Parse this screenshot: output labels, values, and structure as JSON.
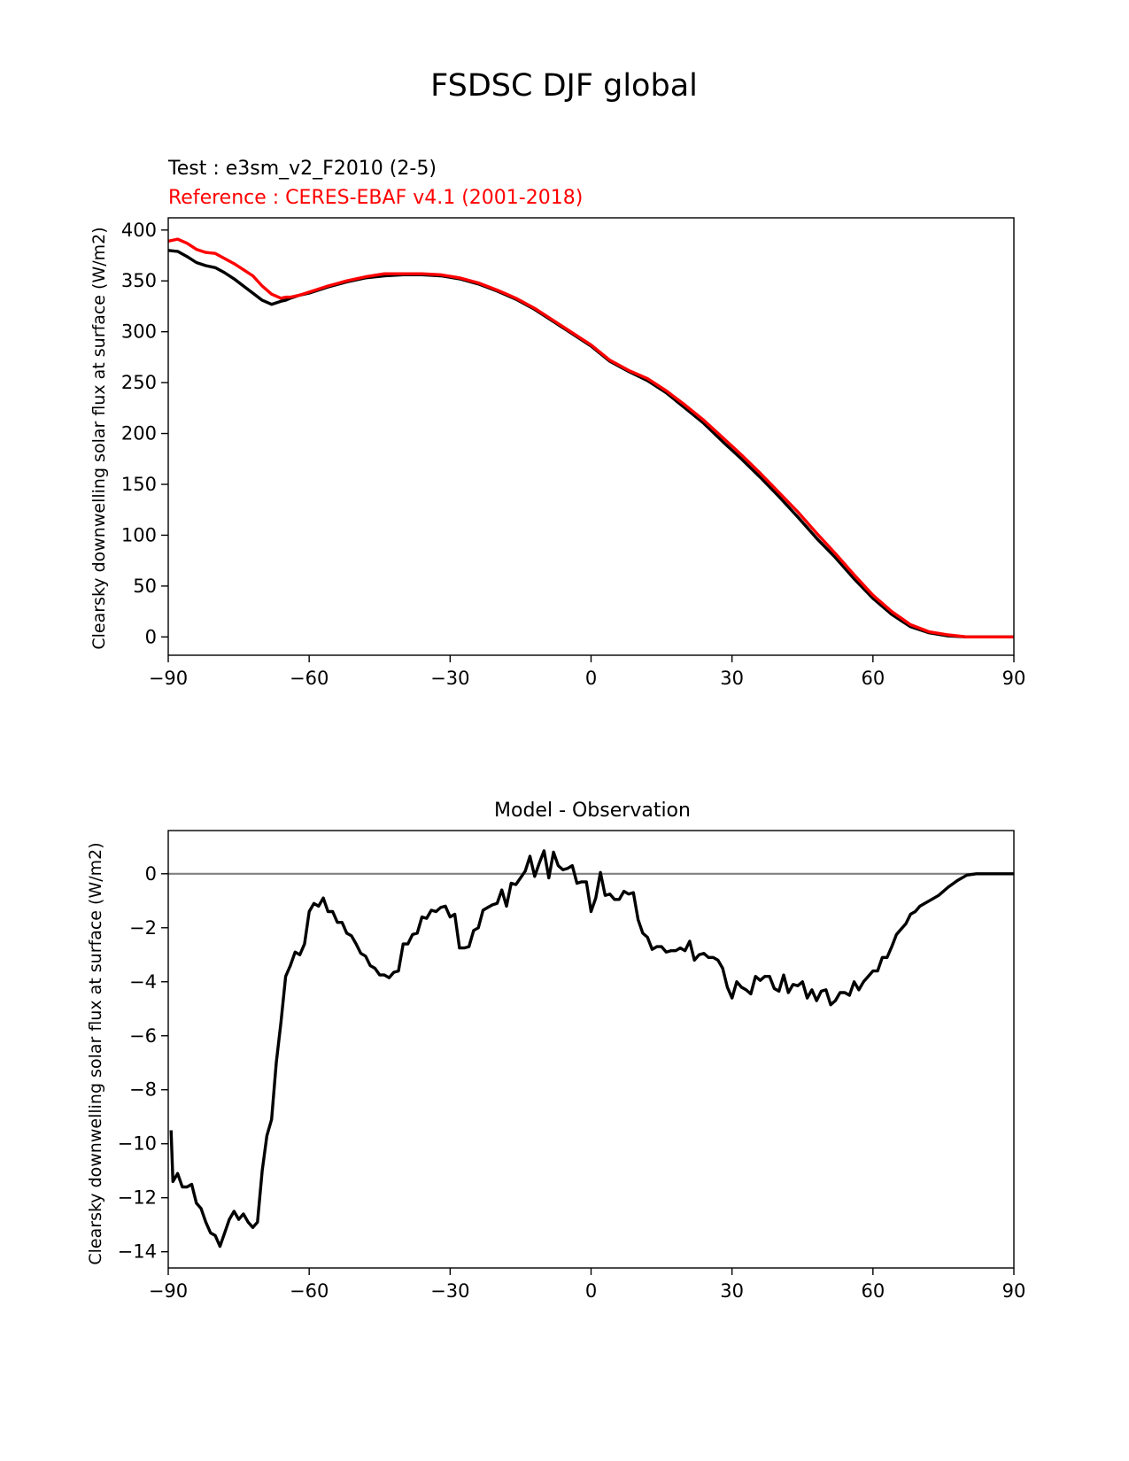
{
  "figure": {
    "suptitle": "FSDSC DJF global"
  },
  "chart_data": [
    {
      "type": "line",
      "title": "",
      "test_label": "Test : e3sm_v2_F2010 (2-5)",
      "reference_label": "Reference : CERES-EBAF v4.1 (2001-2018)",
      "xlabel": "",
      "ylabel": "Clearsky downwelling solar flux at surface (W/m2)",
      "xlim": [
        -90,
        90
      ],
      "ylim": [
        -18,
        412
      ],
      "xticks": [
        -90,
        -60,
        -30,
        0,
        30,
        60,
        90
      ],
      "xtick_labels": [
        "−90",
        "−60",
        "−30",
        "0",
        "30",
        "60",
        "90"
      ],
      "yticks": [
        0,
        50,
        100,
        150,
        200,
        250,
        300,
        350,
        400
      ],
      "ytick_labels": [
        "0",
        "50",
        "100",
        "150",
        "200",
        "250",
        "300",
        "350",
        "400"
      ],
      "grid": false,
      "series": [
        {
          "color": "#000000",
          "x": [
            -90,
            -88,
            -86,
            -84,
            -82,
            -80,
            -78,
            -76,
            -74,
            -72,
            -70,
            -68,
            -66,
            -65,
            -64,
            -62,
            -60,
            -56,
            -52,
            -48,
            -44,
            -40,
            -36,
            -32,
            -28,
            -24,
            -20,
            -16,
            -12,
            -8,
            -4,
            0,
            4,
            8,
            12,
            16,
            20,
            24,
            28,
            32,
            36,
            40,
            44,
            48,
            52,
            56,
            60,
            64,
            68,
            72,
            76,
            80,
            84,
            90
          ],
          "y": [
            380,
            379,
            374,
            368,
            365,
            363,
            358,
            352,
            345,
            338,
            331,
            327,
            330,
            331,
            333,
            336,
            338,
            344,
            349,
            353,
            355,
            356,
            356,
            355,
            352,
            347,
            340,
            332,
            322,
            310,
            298,
            286,
            271,
            261,
            252,
            240,
            225,
            210,
            192,
            175,
            157,
            138,
            118,
            97,
            78,
            57,
            38,
            22,
            10,
            4,
            1,
            0,
            0,
            0
          ]
        },
        {
          "color": "#ff0000",
          "x": [
            -90,
            -88,
            -86,
            -84,
            -82,
            -80,
            -78,
            -76,
            -74,
            -72,
            -70,
            -68,
            -66,
            -65,
            -64,
            -62,
            -60,
            -56,
            -52,
            -48,
            -44,
            -40,
            -36,
            -32,
            -28,
            -24,
            -20,
            -16,
            -12,
            -8,
            -4,
            0,
            4,
            8,
            12,
            16,
            20,
            24,
            28,
            32,
            36,
            40,
            44,
            48,
            52,
            56,
            60,
            64,
            68,
            72,
            76,
            80,
            84,
            90
          ],
          "y": [
            389,
            391,
            387,
            381,
            378,
            377,
            372,
            367,
            361,
            355,
            345,
            337,
            333,
            334,
            334,
            336,
            339,
            345,
            350,
            354,
            357,
            357,
            357,
            356,
            353,
            348,
            341,
            333,
            323,
            311,
            299,
            287,
            272,
            262,
            254,
            242,
            228,
            213,
            196,
            179,
            161,
            142,
            123,
            102,
            82,
            61,
            41,
            25,
            12,
            5,
            2,
            0,
            0,
            0
          ]
        }
      ]
    },
    {
      "type": "line",
      "title": "Model - Observation",
      "xlabel": "",
      "ylabel": "Clearsky downwelling solar flux at surface (W/m2)",
      "xlim": [
        -90,
        90
      ],
      "ylim": [
        -14.6,
        1.6
      ],
      "xticks": [
        -90,
        -60,
        -30,
        0,
        30,
        60,
        90
      ],
      "xtick_labels": [
        "−90",
        "−60",
        "−30",
        "0",
        "30",
        "60",
        "90"
      ],
      "yticks": [
        0,
        -2,
        -4,
        -6,
        -8,
        -10,
        -12,
        -14
      ],
      "ytick_labels": [
        "0",
        "−2",
        "−4",
        "−6",
        "−8",
        "−10",
        "−12",
        "−14"
      ],
      "grid": false,
      "zero_line": {
        "y": 0,
        "color": "#808080"
      },
      "series": [
        {
          "color": "#000000",
          "x": [
            -89.4,
            -89,
            -88,
            -87,
            -86,
            -85,
            -84,
            -83,
            -82,
            -81,
            -80,
            -79,
            -78,
            -77,
            -76,
            -75,
            -74,
            -73,
            -72,
            -71,
            -70,
            -69,
            -68,
            -67,
            -66,
            -65,
            -64,
            -63,
            -62,
            -61,
            -60,
            -59,
            -58,
            -57,
            -56,
            -55,
            -54,
            -53,
            -52,
            -51,
            -50,
            -49,
            -48,
            -47,
            -46,
            -45,
            -44,
            -43,
            -42,
            -41,
            -40,
            -39,
            -38,
            -37,
            -36,
            -35,
            -34,
            -33,
            -32,
            -31,
            -30,
            -29,
            -28,
            -27,
            -26,
            -25,
            -24,
            -23,
            -22,
            -21,
            -20,
            -19,
            -18,
            -17,
            -16,
            -15,
            -14,
            -13,
            -12,
            -11,
            -10,
            -9,
            -8,
            -7,
            -6,
            -5,
            -4,
            -3,
            -2,
            -1,
            0,
            1,
            2,
            3,
            4,
            5,
            6,
            7,
            8,
            9,
            10,
            11,
            12,
            13,
            14,
            15,
            16,
            17,
            18,
            19,
            20,
            21,
            22,
            23,
            24,
            25,
            26,
            27,
            28,
            29,
            30,
            31,
            32,
            33,
            34,
            35,
            36,
            37,
            38,
            39,
            40,
            41,
            42,
            43,
            44,
            45,
            46,
            47,
            48,
            49,
            50,
            51,
            52,
            53,
            54,
            55,
            56,
            57,
            58,
            59,
            60,
            61,
            62,
            63,
            64,
            65,
            66,
            67,
            68,
            69,
            70,
            72,
            74,
            76,
            78,
            80,
            82,
            84,
            86,
            88,
            90
          ],
          "y": [
            -9.5,
            -11.4,
            -11.1,
            -11.6,
            -11.6,
            -11.5,
            -12.2,
            -12.4,
            -12.9,
            -13.3,
            -13.4,
            -13.8,
            -13.3,
            -12.8,
            -12.5,
            -12.8,
            -12.6,
            -12.9,
            -13.1,
            -12.9,
            -11.0,
            -9.7,
            -9.1,
            -7.0,
            -5.5,
            -3.8,
            -3.4,
            -2.9,
            -3.0,
            -2.6,
            -1.4,
            -1.1,
            -1.2,
            -0.9,
            -1.4,
            -1.4,
            -1.8,
            -1.8,
            -2.2,
            -2.3,
            -2.6,
            -2.95,
            -3.05,
            -3.4,
            -3.5,
            -3.75,
            -3.75,
            -3.85,
            -3.65,
            -3.6,
            -2.6,
            -2.6,
            -2.25,
            -2.2,
            -1.6,
            -1.65,
            -1.35,
            -1.4,
            -1.25,
            -1.2,
            -1.6,
            -1.5,
            -2.75,
            -2.75,
            -2.7,
            -2.1,
            -2.0,
            -1.35,
            -1.25,
            -1.15,
            -1.1,
            -0.6,
            -1.2,
            -0.35,
            -0.4,
            -0.15,
            0.1,
            0.65,
            -0.1,
            0.4,
            0.85,
            -0.15,
            0.8,
            0.3,
            0.15,
            0.2,
            0.3,
            -0.35,
            -0.3,
            -0.3,
            -1.4,
            -0.9,
            0.05,
            -0.8,
            -0.75,
            -0.95,
            -0.95,
            -0.65,
            -0.75,
            -0.7,
            -1.7,
            -2.2,
            -2.35,
            -2.8,
            -2.7,
            -2.7,
            -2.9,
            -2.85,
            -2.85,
            -2.75,
            -2.85,
            -2.5,
            -3.2,
            -3.0,
            -2.95,
            -3.1,
            -3.1,
            -3.2,
            -3.5,
            -4.2,
            -4.6,
            -4.0,
            -4.2,
            -4.3,
            -4.45,
            -3.8,
            -3.95,
            -3.8,
            -3.8,
            -4.25,
            -4.35,
            -3.75,
            -4.4,
            -4.1,
            -4.15,
            -4.0,
            -4.6,
            -4.3,
            -4.7,
            -4.35,
            -4.3,
            -4.85,
            -4.7,
            -4.4,
            -4.4,
            -4.5,
            -4.0,
            -4.3,
            -4.0,
            -3.8,
            -3.6,
            -3.6,
            -3.1,
            -3.1,
            -2.7,
            -2.25,
            -2.05,
            -1.85,
            -1.5,
            -1.4,
            -1.2,
            -1.0,
            -0.8,
            -0.5,
            -0.25,
            -0.05,
            0,
            0,
            0,
            0,
            0
          ]
        }
      ]
    }
  ]
}
